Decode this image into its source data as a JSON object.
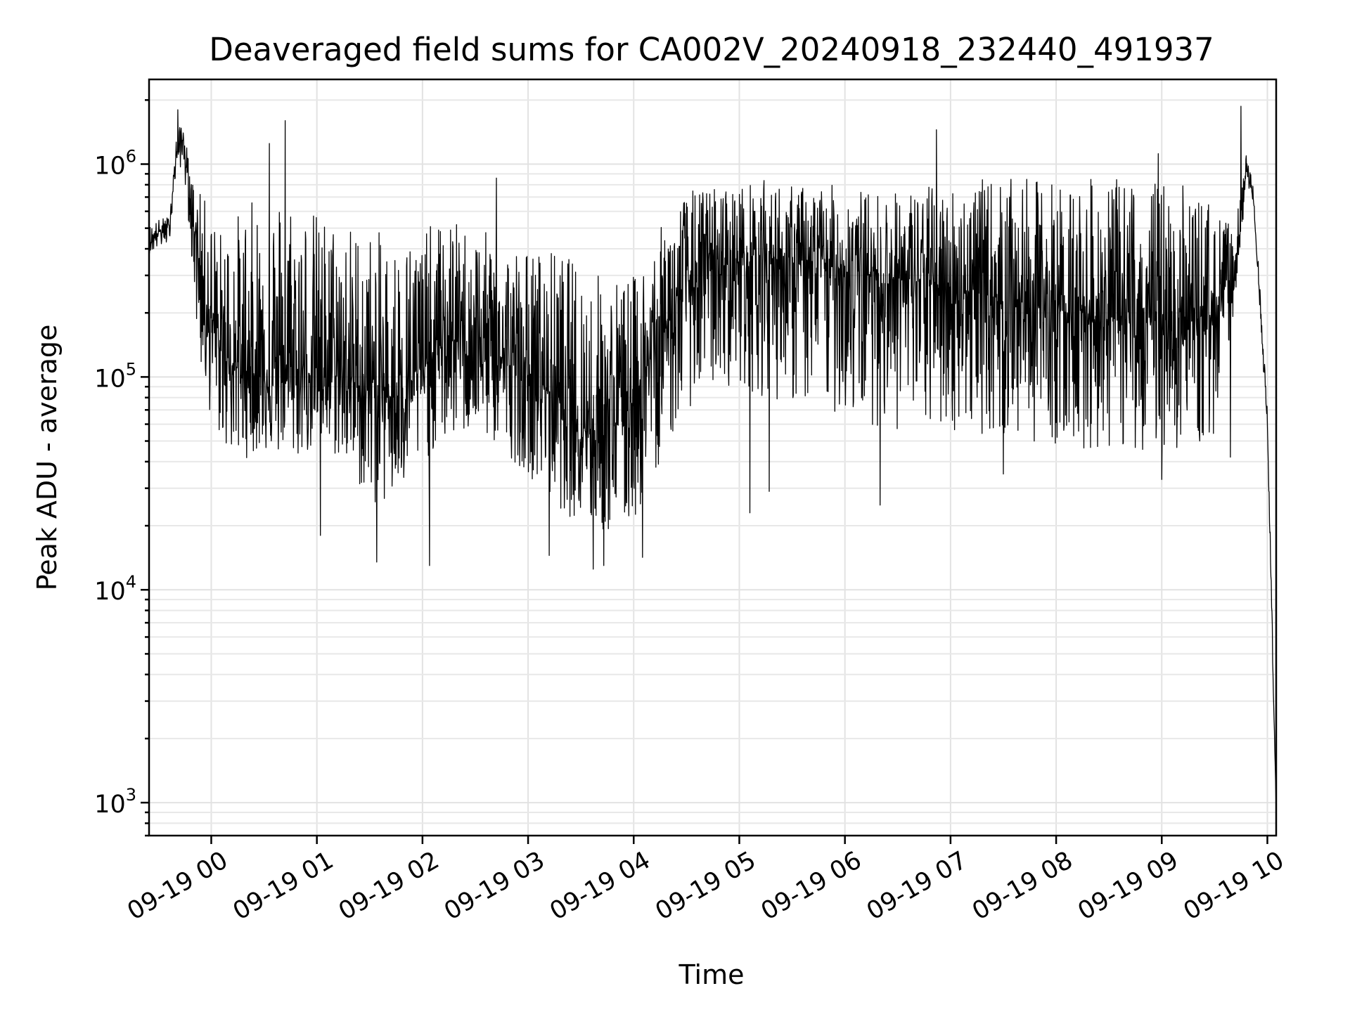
{
  "chart_data": {
    "type": "line",
    "title": "Deaveraged field sums for CA002V_20240918_232440_491937",
    "xlabel": "Time",
    "ylabel": "Peak ADU - average",
    "yscale": "log",
    "ylim": [
      700,
      2500000
    ],
    "xlim": [
      "2024-09-18 23:24:40",
      "2024-09-19 10:05:00"
    ],
    "grid": true,
    "line_color": "#000000",
    "x_ticks": [
      "09-19 00",
      "09-19 01",
      "09-19 02",
      "09-19 03",
      "09-19 04",
      "09-19 05",
      "09-19 06",
      "09-19 07",
      "09-19 08",
      "09-19 09",
      "09-19 10"
    ],
    "x_tick_times": [
      "2024-09-19 00:00",
      "2024-09-19 01:00",
      "2024-09-19 02:00",
      "2024-09-19 03:00",
      "2024-09-19 04:00",
      "2024-09-19 05:00",
      "2024-09-19 06:00",
      "2024-09-19 07:00",
      "2024-09-19 08:00",
      "2024-09-19 09:00",
      "2024-09-19 10:00"
    ],
    "y_ticks": [
      1000,
      10000,
      100000,
      1000000
    ],
    "y_tick_labels": [
      {
        "base": "10",
        "exp": "3"
      },
      {
        "base": "10",
        "exp": "4"
      },
      {
        "base": "10",
        "exp": "5"
      },
      {
        "base": "10",
        "exp": "6"
      }
    ],
    "series": [
      {
        "x": [
          "2024-09-18 23:24:40",
          "2024-09-18 23:30",
          "2024-09-18 23:36",
          "2024-09-18 23:40",
          "2024-09-18 23:44",
          "2024-09-18 23:48",
          "2024-09-18 23:52",
          "2024-09-18 23:56",
          "2024-09-19 00:05",
          "2024-09-19 00:15",
          "2024-09-19 00:30",
          "2024-09-19 00:45",
          "2024-09-19 01:00",
          "2024-09-19 01:15",
          "2024-09-19 01:30",
          "2024-09-19 01:45",
          "2024-09-19 02:00",
          "2024-09-19 02:15",
          "2024-09-19 02:30",
          "2024-09-19 02:45",
          "2024-09-19 03:00",
          "2024-09-19 03:15",
          "2024-09-19 03:30",
          "2024-09-19 03:45",
          "2024-09-19 04:00",
          "2024-09-19 04:15",
          "2024-09-19 04:30",
          "2024-09-19 04:45",
          "2024-09-19 05:00",
          "2024-09-19 05:15",
          "2024-09-19 05:30",
          "2024-09-19 05:45",
          "2024-09-19 06:00",
          "2024-09-19 06:15",
          "2024-09-19 06:30",
          "2024-09-19 06:45",
          "2024-09-19 07:00",
          "2024-09-19 07:15",
          "2024-09-19 07:30",
          "2024-09-19 07:45",
          "2024-09-19 08:00",
          "2024-09-19 08:15",
          "2024-09-19 08:30",
          "2024-09-19 08:45",
          "2024-09-19 09:00",
          "2024-09-19 09:15",
          "2024-09-19 09:30",
          "2024-09-19 09:40",
          "2024-09-19 09:45",
          "2024-09-19 09:48",
          "2024-09-19 09:52",
          "2024-09-19 09:56",
          "2024-09-19 10:00",
          "2024-09-19 10:03",
          "2024-09-19 10:05"
        ],
        "center": [
          420000,
          480000,
          500000,
          1100000,
          1300000,
          700000,
          400000,
          250000,
          130000,
          110000,
          100000,
          95000,
          110000,
          100000,
          85000,
          80000,
          110000,
          150000,
          140000,
          120000,
          100000,
          85000,
          60000,
          55000,
          80000,
          150000,
          280000,
          320000,
          350000,
          380000,
          330000,
          340000,
          320000,
          300000,
          290000,
          280000,
          260000,
          250000,
          230000,
          220000,
          210000,
          200000,
          190000,
          180000,
          190000,
          180000,
          200000,
          300000,
          500000,
          950000,
          700000,
          200000,
          60000,
          5000,
          900
        ],
        "low": [
          380000,
          400000,
          420000,
          900000,
          1000000,
          450000,
          150000,
          80000,
          50000,
          40000,
          45000,
          40000,
          45000,
          40000,
          25000,
          25000,
          40000,
          50000,
          55000,
          45000,
          35000,
          25000,
          20000,
          18000,
          20000,
          40000,
          70000,
          90000,
          90000,
          80000,
          75000,
          70000,
          65000,
          60000,
          55000,
          55000,
          55000,
          55000,
          50000,
          50000,
          48000,
          45000,
          45000,
          45000,
          45000,
          45000,
          50000,
          180000,
          400000,
          850000,
          650000,
          180000,
          55000,
          4500,
          900
        ],
        "high": [
          520000,
          550000,
          570000,
          1300000,
          1700000,
          900000,
          750000,
          700000,
          500000,
          600000,
          750000,
          800000,
          600000,
          550000,
          500000,
          450000,
          500000,
          550000,
          500000,
          450000,
          400000,
          400000,
          350000,
          300000,
          300000,
          500000,
          750000,
          800000,
          800000,
          850000,
          800000,
          800000,
          800000,
          750000,
          750000,
          800000,
          800000,
          850000,
          850000,
          850000,
          850000,
          850000,
          850000,
          850000,
          850000,
          800000,
          650000,
          500000,
          700000,
          1100000,
          800000,
          250000,
          70000,
          6000,
          1000
        ],
        "spikes": [
          {
            "x": "2024-09-18 23:41",
            "y": 1800000
          },
          {
            "x": "2024-09-19 00:33",
            "y": 1250000
          },
          {
            "x": "2024-09-19 00:42",
            "y": 1600000
          },
          {
            "x": "2024-09-19 01:02",
            "y": 18000
          },
          {
            "x": "2024-09-19 01:34",
            "y": 13500
          },
          {
            "x": "2024-09-19 02:04",
            "y": 13000
          },
          {
            "x": "2024-09-19 02:42",
            "y": 860000
          },
          {
            "x": "2024-09-19 03:12",
            "y": 14500
          },
          {
            "x": "2024-09-19 03:37",
            "y": 12500
          },
          {
            "x": "2024-09-19 03:43",
            "y": 13000
          },
          {
            "x": "2024-09-19 04:05",
            "y": 14200
          },
          {
            "x": "2024-09-19 05:06",
            "y": 23000
          },
          {
            "x": "2024-09-19 05:17",
            "y": 29000
          },
          {
            "x": "2024-09-19 06:20",
            "y": 25000
          },
          {
            "x": "2024-09-19 06:52",
            "y": 1450000
          },
          {
            "x": "2024-09-19 07:30",
            "y": 35000
          },
          {
            "x": "2024-09-19 08:58",
            "y": 1120000
          },
          {
            "x": "2024-09-19 09:00",
            "y": 33000
          },
          {
            "x": "2024-09-19 09:39",
            "y": 42000
          },
          {
            "x": "2024-09-19 09:45",
            "y": 1870000
          }
        ]
      }
    ]
  }
}
